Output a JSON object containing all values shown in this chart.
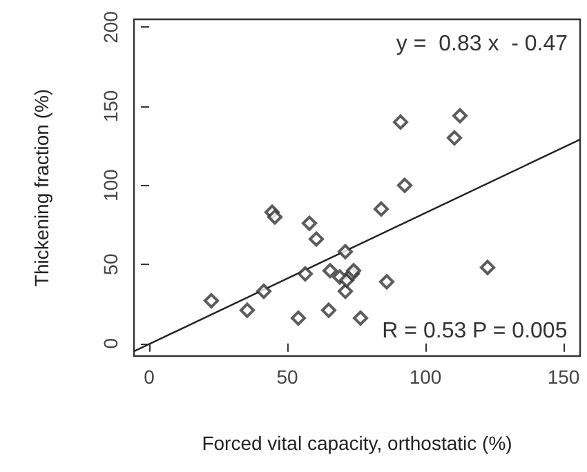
{
  "chart_data": {
    "type": "scatter",
    "xlabel": "Forced vital capacity, orthostatic (%)",
    "ylabel": "Thickening fraction (%)",
    "xlim": [
      -5.5,
      156
    ],
    "ylim": [
      -8,
      205
    ],
    "xticks": [
      0,
      50,
      100,
      150
    ],
    "yticks": [
      0,
      50,
      100,
      150,
      200
    ],
    "grid": false,
    "marker": "diamond",
    "annotations": [
      "y =  0.83 x  - 0.47",
      "R = 0.53 P = 0.005"
    ],
    "series": [
      {
        "color": "#333333",
        "x": [
          44.5,
          45.5,
          58,
          60.5,
          84,
          71,
          22.5,
          35.5,
          41.5,
          54,
          56.5,
          65,
          65.5,
          69,
          71,
          71.5,
          73.5,
          74,
          76.5,
          86,
          122.5,
          91,
          112.5,
          110.5,
          92.5
        ],
        "values": [
          83,
          80,
          76,
          66,
          85,
          58,
          27,
          21,
          33,
          16,
          44,
          21,
          46,
          42,
          33,
          40,
          44,
          46,
          16,
          39,
          48,
          140,
          144,
          130,
          100
        ]
      },
      {
        "type": "line",
        "marker": "none",
        "color": "#222222",
        "x": [
          -5.5,
          156
        ],
        "values": [
          -5,
          129
        ]
      }
    ]
  }
}
